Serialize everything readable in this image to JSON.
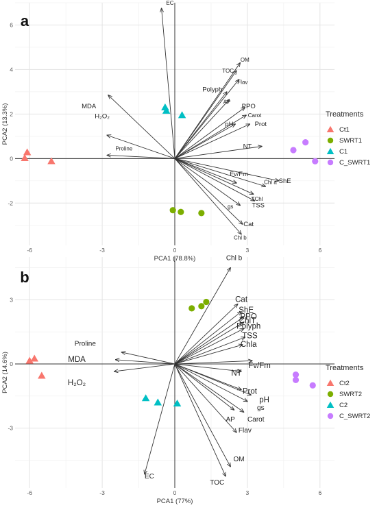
{
  "chart_data": [
    {
      "panel_label": "a",
      "type": "scatter",
      "subtype": "pca-biplot",
      "xlabel": "PCA1 (78.8%)",
      "ylabel": "PCA2 (13.3%)",
      "xlim": [
        -6.6,
        6.6
      ],
      "ylim": [
        -3.9,
        7.0
      ],
      "xticks": [
        -6,
        -3,
        0,
        3,
        6
      ],
      "yticks": [
        -2,
        0,
        2,
        4,
        6
      ],
      "grid": true,
      "legend_title": "Treatments",
      "legend_position": "right",
      "series": [
        {
          "name": "Ct1",
          "marker": "triangle",
          "color": "#F8766D",
          "points": [
            [
              -6.1,
              0.28
            ],
            [
              -6.2,
              0.02
            ],
            [
              -5.1,
              -0.12
            ]
          ]
        },
        {
          "name": "SWRT1",
          "marker": "circle",
          "color": "#7CAE00",
          "points": [
            [
              -0.08,
              -2.32
            ],
            [
              0.25,
              -2.4
            ],
            [
              1.1,
              -2.45
            ]
          ]
        },
        {
          "name": "C1",
          "marker": "triangle",
          "color": "#00BFC4",
          "points": [
            [
              -0.4,
              2.3
            ],
            [
              -0.35,
              2.15
            ],
            [
              0.3,
              1.95
            ]
          ]
        },
        {
          "name": "C_SWRT1",
          "marker": "circle",
          "color": "#C77CFF",
          "points": [
            [
              4.9,
              0.38
            ],
            [
              5.4,
              0.73
            ],
            [
              5.8,
              -0.12
            ]
          ]
        }
      ],
      "loadings": [
        {
          "label": "EC",
          "x": -0.55,
          "y": 6.75,
          "label_x": -0.2,
          "label_y": 7.0
        },
        {
          "label": "OM",
          "x": 2.7,
          "y": 4.3,
          "label_x": 2.9,
          "label_y": 4.45
        },
        {
          "label": "TOC",
          "x": 2.55,
          "y": 3.95,
          "label_x": 2.2,
          "label_y": 3.95
        },
        {
          "label": "Flav",
          "x": 2.65,
          "y": 3.55,
          "label_x": 2.8,
          "label_y": 3.45
        },
        {
          "label": "Polyph",
          "x": 2.15,
          "y": 3.0,
          "label_x": 1.55,
          "label_y": 3.1
        },
        {
          "label": "AP",
          "x": 2.25,
          "y": 2.65,
          "label_x": 2.15,
          "label_y": 2.55
        },
        {
          "label": "PPO",
          "x": 2.9,
          "y": 2.3,
          "label_x": 3.05,
          "label_y": 2.35
        },
        {
          "label": "MDA",
          "x": -2.75,
          "y": 2.85,
          "label_x": -3.55,
          "label_y": 2.35
        },
        {
          "label": "Carot",
          "x": 2.95,
          "y": 1.95,
          "label_x": 3.3,
          "label_y": 1.95
        },
        {
          "label": "Prot",
          "x": 3.1,
          "y": 1.55,
          "label_x": 3.55,
          "label_y": 1.55
        },
        {
          "label": "pH",
          "x": 2.5,
          "y": 1.55,
          "label_x": 2.25,
          "label_y": 1.55
        },
        {
          "label": "H₂O₂",
          "x": -2.8,
          "y": 1.05,
          "label_x": -3.0,
          "label_y": 1.9
        },
        {
          "label": "NT",
          "x": 3.6,
          "y": 0.55,
          "label_x": 3.0,
          "label_y": 0.55
        },
        {
          "label": "Proline",
          "x": -2.8,
          "y": 0.15,
          "label_x": -2.1,
          "label_y": 0.45
        },
        {
          "label": "ShE",
          "x": 4.3,
          "y": -1.0,
          "label_x": 4.55,
          "label_y": -1.0
        },
        {
          "label": "Fv/Fm",
          "x": 2.55,
          "y": -1.1,
          "label_x": 2.65,
          "label_y": -0.7
        },
        {
          "label": "Chl a",
          "x": 3.75,
          "y": -1.25,
          "label_x": 3.95,
          "label_y": -1.05
        },
        {
          "label": "TChl",
          "x": 3.25,
          "y": -1.6,
          "label_x": 3.4,
          "label_y": -1.8
        },
        {
          "label": "TSS",
          "x": 3.3,
          "y": -1.9,
          "label_x": 3.45,
          "label_y": -2.1
        },
        {
          "label": "gs",
          "x": 2.7,
          "y": -2.1,
          "label_x": 2.3,
          "label_y": -2.15
        },
        {
          "label": "Cat",
          "x": 2.8,
          "y": -2.95,
          "label_x": 3.05,
          "label_y": -2.95
        },
        {
          "label": "Chl b",
          "x": 2.75,
          "y": -3.4,
          "label_x": 2.7,
          "label_y": -3.55
        }
      ]
    },
    {
      "panel_label": "b",
      "type": "scatter",
      "subtype": "pca-biplot",
      "xlabel": "PCA1 (77%)",
      "ylabel": "PCA2 (14.6%)",
      "xlim": [
        -6.6,
        6.6
      ],
      "ylim": [
        -5.8,
        5.0
      ],
      "xticks": [
        -6,
        -3,
        0,
        3,
        6
      ],
      "yticks": [
        -3,
        0,
        3
      ],
      "grid": true,
      "legend_title": "Treatments",
      "legend_position": "right",
      "series": [
        {
          "name": "Ct2",
          "marker": "triangle",
          "color": "#F8766D",
          "points": [
            [
              -6.0,
              0.15
            ],
            [
              -5.8,
              0.25
            ],
            [
              -5.5,
              -0.55
            ]
          ]
        },
        {
          "name": "SWRT2",
          "marker": "circle",
          "color": "#7CAE00",
          "points": [
            [
              0.7,
              2.6
            ],
            [
              1.1,
              2.7
            ],
            [
              1.3,
              2.9
            ]
          ]
        },
        {
          "name": "C2",
          "marker": "triangle",
          "color": "#00BFC4",
          "points": [
            [
              -1.2,
              -1.6
            ],
            [
              -0.7,
              -1.8
            ],
            [
              0.1,
              -1.85
            ]
          ]
        },
        {
          "name": "C_SWRT2",
          "marker": "circle",
          "color": "#C77CFF",
          "points": [
            [
              5.0,
              -0.5
            ],
            [
              5.0,
              -0.75
            ],
            [
              5.7,
              -1.0
            ]
          ]
        }
      ],
      "loadings": [
        {
          "label": "Chl b",
          "x": 2.3,
          "y": 4.5,
          "label_x": 2.45,
          "label_y": 4.95
        },
        {
          "label": "Cat",
          "x": 2.6,
          "y": 2.8,
          "label_x": 2.75,
          "label_y": 3.0
        },
        {
          "label": "ShE",
          "x": 2.75,
          "y": 2.45,
          "label_x": 2.95,
          "label_y": 2.5
        },
        {
          "label": "PPO",
          "x": 2.85,
          "y": 2.2,
          "label_x": 3.05,
          "label_y": 2.2
        },
        {
          "label": "ChlT",
          "x": 2.85,
          "y": 1.95,
          "label_x": 3.0,
          "label_y": 2.0
        },
        {
          "label": "Polyph",
          "x": 2.85,
          "y": 1.65,
          "label_x": 3.05,
          "label_y": 1.75
        },
        {
          "label": "TSS",
          "x": 2.9,
          "y": 1.25,
          "label_x": 3.1,
          "label_y": 1.3
        },
        {
          "label": "Chla",
          "x": 2.8,
          "y": 0.9,
          "label_x": 3.05,
          "label_y": 0.9
        },
        {
          "label": "Proline",
          "x": -2.2,
          "y": 0.55,
          "label_x": -3.7,
          "label_y": 0.95
        },
        {
          "label": "MDA",
          "x": -2.45,
          "y": 0.2,
          "label_x": -4.05,
          "label_y": 0.2
        },
        {
          "label": "H₂O₂",
          "x": -2.5,
          "y": -0.35,
          "label_x": -4.05,
          "label_y": -0.9
        },
        {
          "label": "Fv/Fm",
          "x": 3.2,
          "y": 0.15,
          "label_x": 3.5,
          "label_y": -0.1
        },
        {
          "label": "NT",
          "x": 2.75,
          "y": -0.35,
          "label_x": 2.55,
          "label_y": -0.45
        },
        {
          "label": "Prot",
          "x": 2.75,
          "y": -1.2,
          "label_x": 3.1,
          "label_y": -1.3
        },
        {
          "label": "pH",
          "x": 3.15,
          "y": -1.45,
          "label_x": 3.7,
          "label_y": -1.7
        },
        {
          "label": "gs",
          "x": 3.0,
          "y": -1.75,
          "label_x": 3.55,
          "label_y": -2.05
        },
        {
          "label": "AP",
          "x": 2.45,
          "y": -2.15,
          "label_x": 2.3,
          "label_y": -2.6
        },
        {
          "label": "Carot",
          "x": 2.85,
          "y": -2.25,
          "label_x": 3.35,
          "label_y": -2.6
        },
        {
          "label": "Flav",
          "x": 2.55,
          "y": -3.2,
          "label_x": 2.9,
          "label_y": -3.1
        },
        {
          "label": "OM",
          "x": 2.3,
          "y": -4.8,
          "label_x": 2.65,
          "label_y": -4.45
        },
        {
          "label": "TOC",
          "x": 2.1,
          "y": -5.25,
          "label_x": 1.75,
          "label_y": -5.55
        },
        {
          "label": "EC",
          "x": -1.25,
          "y": -5.15,
          "label_x": -1.05,
          "label_y": -5.25
        }
      ]
    }
  ]
}
